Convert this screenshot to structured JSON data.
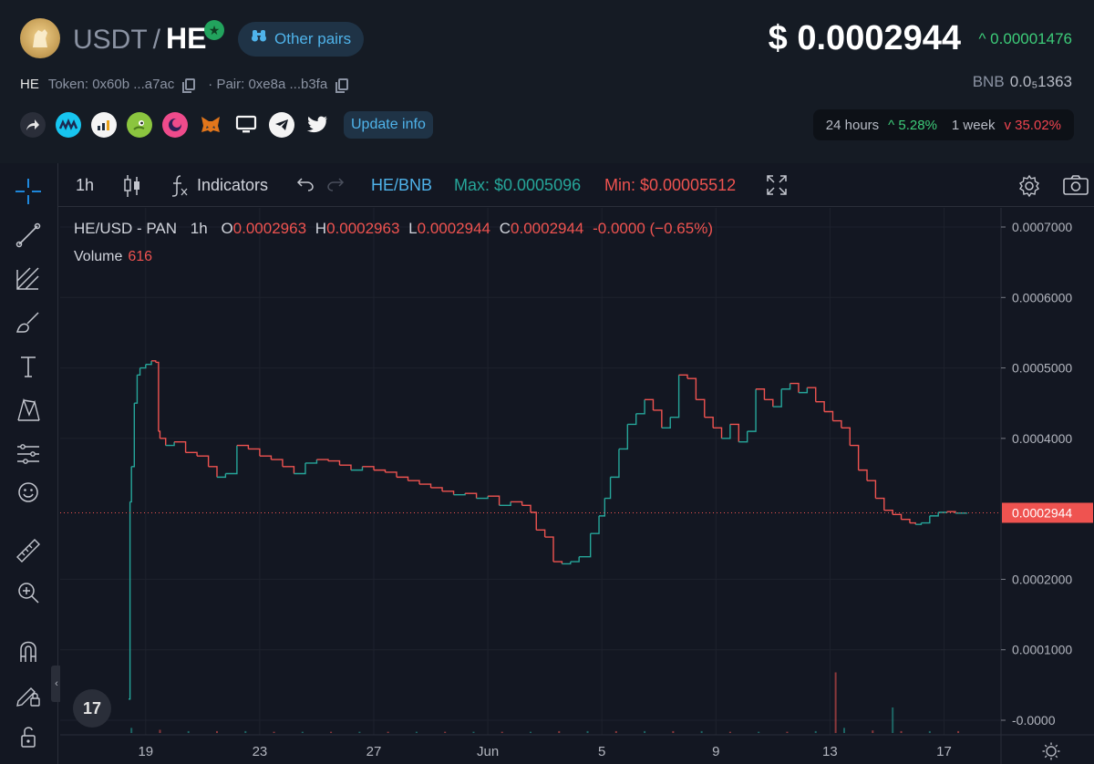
{
  "header": {
    "quote_symbol": "USDT",
    "separator": "/",
    "base_symbol": "HE",
    "other_pairs_label": "Other pairs",
    "price": "$ 0.0002944",
    "price_change": "^ 0.00001476",
    "token_symbol": "HE",
    "token_label": "Token: 0x60b ...a7ac",
    "pair_label": "· Pair: 0xe8a ...b3fa",
    "bnb_label": "BNB",
    "bnb_value": "0.0₅1363",
    "update_info_label": "Update info",
    "stats": {
      "period_24h": "24 hours",
      "change_24h": "^ 5.28%",
      "period_1w": "1 week",
      "change_1w": "v 35.02%"
    },
    "social_icons": [
      "share-icon",
      "coinmarketcap-icon",
      "chart-stats-icon",
      "coingecko-icon",
      "moon-icon",
      "metamask-icon",
      "desktop-icon",
      "telegram-icon",
      "twitter-icon"
    ]
  },
  "toolbar": {
    "interval": "1h",
    "indicators_label": "Indicators",
    "pair_switch": "HE/BNB",
    "max_label": "Max: $0.0005096",
    "min_label": "Min: $0.00005512"
  },
  "legend": {
    "symbol": "HE/USD - PAN",
    "interval": "1h",
    "o_label": "O",
    "o_value": "0.0002963",
    "h_label": "H",
    "h_value": "0.0002963",
    "l_label": "L",
    "l_value": "0.0002944",
    "c_label": "C",
    "c_value": "0.0002944",
    "change": "-0.0000 (−0.65%)",
    "volume_label": "Volume",
    "volume_value": "616"
  },
  "colors": {
    "up": "#26a69a",
    "down": "#ef5350",
    "price_tag": "#ef5350",
    "accent": "#4fb3ea"
  },
  "chart_data": {
    "type": "line",
    "title": "HE/USD - PAN",
    "interval": "1h",
    "current_price": 0.0002944,
    "current_price_label": "0.0002944",
    "yaxis_ticks": [
      {
        "value": 0.0007,
        "label": "0.0007000"
      },
      {
        "value": 0.0006,
        "label": "0.0006000"
      },
      {
        "value": 0.0005,
        "label": "0.0005000"
      },
      {
        "value": 0.0004,
        "label": "0.0004000"
      },
      {
        "value": 0.0002,
        "label": "0.0002000"
      },
      {
        "value": 0.0001,
        "label": "0.0001000"
      },
      {
        "value": 0.0,
        "label": "-0.0000"
      }
    ],
    "ylim": [
      0.0,
      0.000725
    ],
    "xaxis_ticks": [
      {
        "x": 3.0,
        "label": "19"
      },
      {
        "x": 7.0,
        "label": "23"
      },
      {
        "x": 11.0,
        "label": "27"
      },
      {
        "x": 15.0,
        "label": "Jun"
      },
      {
        "x": 19.0,
        "label": "5"
      },
      {
        "x": 23.0,
        "label": "9"
      },
      {
        "x": 27.0,
        "label": "13"
      },
      {
        "x": 31.0,
        "label": "17"
      }
    ],
    "xlim": [
      0.0,
      33.0
    ],
    "series": [
      {
        "x": [
          2.4,
          2.45,
          2.5,
          2.6,
          2.7,
          2.8,
          3.0,
          3.2,
          3.35,
          3.45,
          3.5,
          3.7,
          4.0,
          4.4,
          4.8,
          5.2,
          5.5,
          5.8,
          6.2,
          6.6,
          7.0,
          7.4,
          7.8,
          8.2,
          8.6,
          9.0,
          9.4,
          9.8,
          10.2,
          10.6,
          11.0,
          11.4,
          11.8,
          12.2,
          12.6,
          13.0,
          13.4,
          13.8,
          14.2,
          14.6,
          15.0,
          15.4,
          15.8,
          16.2,
          16.5,
          16.7,
          17.0,
          17.3,
          17.6,
          17.9,
          18.2,
          18.6,
          18.9,
          19.1,
          19.3,
          19.6,
          19.9,
          20.2,
          20.5,
          20.8,
          21.1,
          21.4,
          21.7,
          22.0,
          22.3,
          22.6,
          22.9,
          23.2,
          23.5,
          23.8,
          24.1,
          24.4,
          24.7,
          25.0,
          25.3,
          25.6,
          25.9,
          26.2,
          26.5,
          26.8,
          27.1,
          27.4,
          27.7,
          28.0,
          28.3,
          28.6,
          28.9,
          29.2,
          29.5,
          29.8,
          30.0,
          30.2,
          30.5,
          30.8,
          31.1,
          31.4,
          31.8
        ],
        "y": [
          3e-05,
          0.00031,
          0.00036,
          0.00045,
          0.00049,
          0.0005,
          0.000505,
          0.00051,
          0.000508,
          0.00041,
          0.0004,
          0.00039,
          0.000395,
          0.00038,
          0.000375,
          0.00036,
          0.000345,
          0.00035,
          0.00039,
          0.000385,
          0.000375,
          0.00037,
          0.00036,
          0.00035,
          0.000365,
          0.00037,
          0.000368,
          0.000362,
          0.000355,
          0.00036,
          0.000355,
          0.000352,
          0.000345,
          0.00034,
          0.000335,
          0.00033,
          0.000325,
          0.00032,
          0.000322,
          0.000315,
          0.000318,
          0.000305,
          0.00031,
          0.000305,
          0.000295,
          0.00027,
          0.00026,
          0.000225,
          0.000222,
          0.000225,
          0.000232,
          0.000265,
          0.00029,
          0.000315,
          0.000345,
          0.000385,
          0.00042,
          0.000435,
          0.000455,
          0.00044,
          0.000415,
          0.00043,
          0.00049,
          0.000485,
          0.000455,
          0.00043,
          0.000415,
          0.0004,
          0.00042,
          0.000395,
          0.00041,
          0.00047,
          0.000455,
          0.000445,
          0.00047,
          0.000478,
          0.000465,
          0.000472,
          0.000452,
          0.000438,
          0.000425,
          0.000415,
          0.00039,
          0.000355,
          0.00034,
          0.000315,
          0.000298,
          0.000292,
          0.000285,
          0.00028,
          0.000278,
          0.00028,
          0.00029,
          0.000295,
          0.000296,
          0.000294,
          0.0002944
        ]
      }
    ],
    "volume": {
      "x": [
        2.5,
        3.5,
        4.5,
        5.5,
        6.5,
        7.5,
        8.5,
        9.5,
        10.5,
        11.5,
        12.5,
        13.5,
        14.5,
        15.5,
        16.5,
        17.5,
        18.5,
        19.5,
        20.5,
        21.5,
        22.5,
        23.5,
        24.5,
        25.5,
        26.5,
        27.2,
        27.5,
        28.5,
        29.2,
        29.5,
        30.5,
        31.5
      ],
      "values": [
        8,
        5,
        3,
        3,
        3,
        2,
        2,
        2,
        2,
        2,
        2,
        2,
        2,
        2,
        2,
        3,
        3,
        3,
        3,
        3,
        3,
        2,
        2,
        2,
        3,
        95,
        8,
        4,
        40,
        3,
        3,
        3
      ]
    }
  }
}
